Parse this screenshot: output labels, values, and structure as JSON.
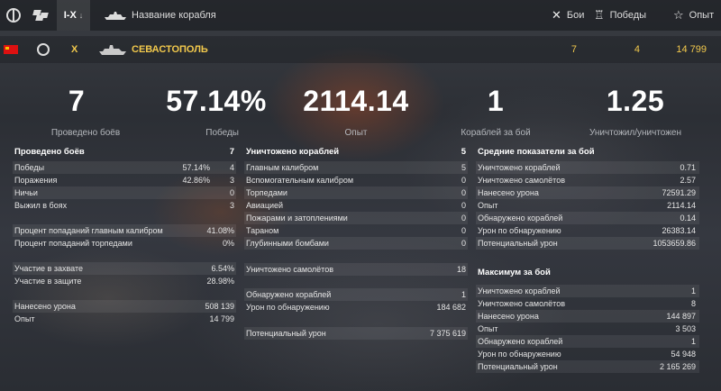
{
  "toolbar": {
    "tier_filter": "I-X",
    "tier_arrow": "↓",
    "ship_name_header": "Название корабля",
    "sort_battles": "Бои",
    "sort_wins": "Победы",
    "sort_exp": "Опыт"
  },
  "ship_row": {
    "tier": "X",
    "name": "СЕВАСТОПОЛЬ",
    "battles": "7",
    "wins": "4",
    "exp": "14 799"
  },
  "summary": [
    {
      "value": "7",
      "caption": "Проведено боёв"
    },
    {
      "value": "57.14%",
      "caption": "Победы"
    },
    {
      "value": "2114.14",
      "caption": "Опыт"
    },
    {
      "value": "1",
      "caption": "Кораблей за бой"
    },
    {
      "value": "1.25",
      "caption": "Уничтожил/уничтожен"
    }
  ],
  "col1": {
    "header": "Проведено боёв",
    "header_value": "7",
    "rows": [
      {
        "label": "Победы",
        "pct": "57.14%",
        "value": "4"
      },
      {
        "label": "Поражения",
        "pct": "42.86%",
        "value": "3"
      },
      {
        "label": "Ничьи",
        "pct": "",
        "value": "0"
      },
      {
        "label": "Выжил в боях",
        "pct": "",
        "value": "3"
      },
      {
        "label": "Процент попаданий главным калибром",
        "pct": "",
        "value": "41.08%"
      },
      {
        "label": "Процент попаданий торпедами",
        "pct": "",
        "value": "0%"
      },
      {
        "label": "Участие в захвате",
        "pct": "",
        "value": "6.54%"
      },
      {
        "label": "Участие в защите",
        "pct": "",
        "value": "28.98%"
      },
      {
        "label": "Нанесено урона",
        "pct": "",
        "value": "508 139"
      },
      {
        "label": "Опыт",
        "pct": "",
        "value": "14 799"
      }
    ]
  },
  "col2": {
    "header": "Уничтожено кораблей",
    "header_value": "5",
    "rows": [
      {
        "label": "Главным калибром",
        "value": "5"
      },
      {
        "label": "Вспомогательным калибром",
        "value": "0"
      },
      {
        "label": "Торпедами",
        "value": "0"
      },
      {
        "label": "Авиацией",
        "value": "0"
      },
      {
        "label": "Пожарами и затоплениями",
        "value": "0"
      },
      {
        "label": "Тараном",
        "value": "0"
      },
      {
        "label": "Глубинными бомбами",
        "value": "0"
      },
      {
        "label": "Уничтожено самолётов",
        "value": "18"
      },
      {
        "label": "Обнаружено кораблей",
        "value": "1"
      },
      {
        "label": "Урон по обнаружению",
        "value": "184 682"
      },
      {
        "label": "Потенциальный урон",
        "value": "7 375 619"
      }
    ]
  },
  "col3": {
    "header": "Средние показатели за бой",
    "rows": [
      {
        "label": "Уничтожено кораблей",
        "value": "0.71"
      },
      {
        "label": "Уничтожено самолётов",
        "value": "2.57"
      },
      {
        "label": "Нанесено урона",
        "value": "72591.29"
      },
      {
        "label": "Опыт",
        "value": "2114.14"
      },
      {
        "label": "Обнаружено кораблей",
        "value": "0.14"
      },
      {
        "label": "Урон по обнаружению",
        "value": "26383.14"
      },
      {
        "label": "Потенциальный урон",
        "value": "1053659.86"
      }
    ]
  },
  "col4": {
    "header": "Максимум за бой",
    "rows": [
      {
        "label": "Уничтожено кораблей",
        "value": "1"
      },
      {
        "label": "Уничтожено самолётов",
        "value": "8"
      },
      {
        "label": "Нанесено урона",
        "value": "144 897"
      },
      {
        "label": "Опыт",
        "value": "3 503"
      },
      {
        "label": "Обнаружено кораблей",
        "value": "1"
      },
      {
        "label": "Урон по обнаружению",
        "value": "54 948"
      },
      {
        "label": "Потенциальный урон",
        "value": "2 165 269"
      }
    ]
  },
  "colors": {
    "accent_gold": "#f2c94c",
    "flag_red": "#d11111"
  },
  "icons": [
    "globe-icon",
    "nation-flags-icon",
    "ship-silhouette-icon",
    "crossed-swords-icon",
    "trophy-icon",
    "star-icon",
    "ussr-flag-icon",
    "ship-class-icon"
  ]
}
